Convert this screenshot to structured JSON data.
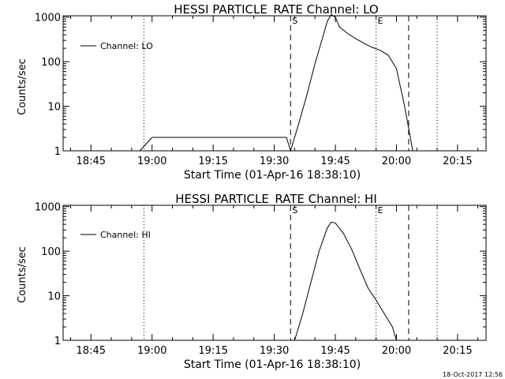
{
  "chart_data": [
    {
      "type": "line",
      "title": "HESSI PARTICLE_RATE Channel: LO",
      "xlabel": "Start Time (01-Apr-16 18:38:10)",
      "ylabel": "Counts/sec",
      "x_ticks": [
        "18:45",
        "19:00",
        "19:15",
        "19:30",
        "19:45",
        "20:00",
        "20:15"
      ],
      "y_ticks": [
        "1",
        "10",
        "100",
        "1000"
      ],
      "y_scale": "log",
      "legend": "Channel: LO",
      "markers": [
        {
          "label": "S",
          "time": "19:34",
          "style": "dashed"
        },
        {
          "label": "E",
          "time": "19:55",
          "style": "dotted"
        }
      ],
      "series": [
        {
          "name": "Channel: LO",
          "x": [
            "18:42",
            "18:45",
            "18:48",
            "18:51",
            "18:54",
            "18:57",
            "19:00",
            "19:03",
            "19:06",
            "19:09",
            "19:12",
            "19:15",
            "19:18",
            "19:21",
            "19:24",
            "19:27",
            "19:30",
            "19:33",
            "19:34",
            "19:36",
            "19:38",
            "19:40",
            "19:42",
            "19:43",
            "19:44",
            "19:45",
            "19:46",
            "19:48",
            "19:50",
            "19:52",
            "19:54",
            "19:56",
            "19:58",
            "20:00",
            "20:02",
            "20:04",
            "20:06",
            "20:08"
          ],
          "values": [
            1,
            1,
            1,
            1,
            1,
            1,
            2,
            2,
            2,
            2,
            2,
            2,
            2,
            2,
            2,
            2,
            2,
            2,
            1,
            4,
            18,
            90,
            380,
            800,
            1150,
            1000,
            600,
            430,
            330,
            260,
            210,
            180,
            140,
            70,
            10,
            1,
            1,
            1
          ]
        }
      ]
    },
    {
      "type": "line",
      "title": "HESSI PARTICLE_RATE Channel: HI",
      "xlabel": "Start Time (01-Apr-16 18:38:10)",
      "ylabel": "Counts/sec",
      "x_ticks": [
        "18:45",
        "19:00",
        "19:15",
        "19:30",
        "19:45",
        "20:00",
        "20:15"
      ],
      "y_ticks": [
        "1",
        "10",
        "100",
        "1000"
      ],
      "y_scale": "log",
      "legend": "Channel: HI",
      "markers": [
        {
          "label": "S",
          "time": "19:34",
          "style": "dashed"
        },
        {
          "label": "E",
          "time": "19:55",
          "style": "dotted"
        }
      ],
      "series": [
        {
          "name": "Channel: HI",
          "x": [
            "19:35",
            "19:37",
            "19:39",
            "19:41",
            "19:43",
            "19:44",
            "19:45",
            "19:47",
            "19:49",
            "19:51",
            "19:53",
            "19:55",
            "19:57",
            "19:59",
            "20:00"
          ],
          "values": [
            1,
            4,
            20,
            100,
            330,
            450,
            430,
            250,
            110,
            40,
            15,
            8,
            4,
            2,
            1
          ]
        }
      ]
    }
  ],
  "footer": {
    "timestamp": "18-Oct-2017 12:56"
  }
}
